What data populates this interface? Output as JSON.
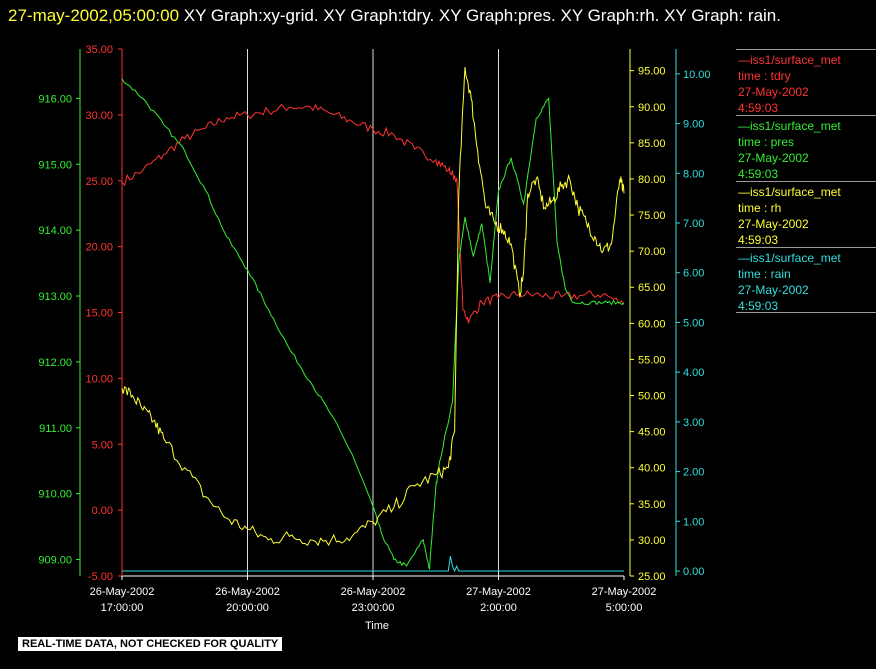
{
  "header": {
    "timestamp": "27-may-2002,05:00:00",
    "title": "XY Graph:xy-grid.  XY Graph:tdry.  XY Graph:pres.  XY Graph:rh.  XY Graph: rain."
  },
  "disclaimer": "REAL-TIME DATA, NOT CHECKED FOR QUALITY",
  "colors": {
    "tdry": "#ff3333",
    "pres": "#33ee33",
    "rh": "#ffff33",
    "rain": "#33dddd",
    "grid": "#dddddd"
  },
  "legend": [
    {
      "name": "iss1/surface_met",
      "var": "time : tdry",
      "date": "27-May-2002",
      "time": "4:59:03",
      "color": "#ff3333"
    },
    {
      "name": "iss1/surface_met",
      "var": "time : pres",
      "date": "27-May-2002",
      "time": "4:59:03",
      "color": "#33ee33"
    },
    {
      "name": "iss1/surface_met",
      "var": "time : rh",
      "date": "27-May-2002",
      "time": "4:59:03",
      "color": "#ffff33"
    },
    {
      "name": "iss1/surface_met",
      "var": "time : rain",
      "date": "27-May-2002",
      "time": "4:59:03",
      "color": "#33dddd"
    }
  ],
  "chart_data": {
    "type": "line",
    "xlabel": "Time",
    "xlim": [
      "2002-05-26 17:00:00",
      "2002-05-27 05:00:00"
    ],
    "xticks": [
      {
        "date": "26-May-2002",
        "time": "17:00:00"
      },
      {
        "date": "26-May-2002",
        "time": "20:00:00"
      },
      {
        "date": "26-May-2002",
        "time": "23:00:00"
      },
      {
        "date": "27-May-2002",
        "time": "2:00:00"
      },
      {
        "date": "27-May-2002",
        "time": "5:00:00"
      }
    ],
    "axes": {
      "pres": {
        "ylim": [
          908.75,
          916.75
        ],
        "ticks": [
          "909.00",
          "910.00",
          "911.00",
          "912.00",
          "913.00",
          "914.00",
          "915.00",
          "916.00"
        ]
      },
      "tdry": {
        "ylim": [
          -5,
          35
        ],
        "ticks": [
          "-5.00",
          "0.00",
          "5.00",
          "10.00",
          "15.00",
          "20.00",
          "25.00",
          "30.00",
          "35.00"
        ]
      },
      "rh": {
        "ylim": [
          25,
          98
        ],
        "ticks": [
          "25.00",
          "30.00",
          "35.00",
          "40.00",
          "45.00",
          "50.00",
          "55.00",
          "60.00",
          "65.00",
          "70.00",
          "75.00",
          "80.00",
          "85.00",
          "90.00",
          "95.00"
        ]
      },
      "rain": {
        "ylim": [
          -0.1,
          10.5
        ],
        "ticks": [
          "0.00",
          "1.00",
          "2.00",
          "3.00",
          "4.00",
          "5.00",
          "6.00",
          "7.00",
          "8.00",
          "9.00",
          "10.00"
        ]
      }
    },
    "series": [
      {
        "key": "tdry",
        "axis": "tdry",
        "x": [
          0,
          0.5,
          1,
          1.5,
          2,
          2.5,
          3,
          3.5,
          4,
          4.5,
          5,
          5.5,
          6,
          6.5,
          7,
          7.5,
          7.8,
          8,
          8.15,
          8.3,
          8.6,
          9,
          9.5,
          10,
          10.5,
          11,
          11.5,
          12
        ],
        "y": [
          24.9,
          25.8,
          27.0,
          28.2,
          29.0,
          29.8,
          30.0,
          30.3,
          30.6,
          30.6,
          30.1,
          29.5,
          28.9,
          28.5,
          27.4,
          26.6,
          25.8,
          25.2,
          15.2,
          14.4,
          15.8,
          16.1,
          16.4,
          16.3,
          16.2,
          16.3,
          16.4,
          15.6
        ]
      },
      {
        "key": "pres",
        "axis": "pres",
        "x": [
          0,
          0.5,
          1,
          1.5,
          2,
          2.5,
          3,
          3.5,
          4,
          4.5,
          5,
          5.5,
          6,
          6.2,
          6.5,
          6.8,
          7.2,
          7.35,
          7.5,
          7.6,
          7.9,
          8.05,
          8.2,
          8.4,
          8.6,
          8.8,
          9.0,
          9.3,
          9.6,
          9.9,
          10.2,
          10.4,
          10.6,
          10.8,
          11.2,
          11.6,
          12
        ],
        "y": [
          916.3,
          916.0,
          915.6,
          915.2,
          914.6,
          913.9,
          913.4,
          912.8,
          912.2,
          911.7,
          911.2,
          910.6,
          909.8,
          909.4,
          909.0,
          908.9,
          909.3,
          908.85,
          910.1,
          910.5,
          911.4,
          913.5,
          914.2,
          913.6,
          914.1,
          913.2,
          914.6,
          915.1,
          914.4,
          915.7,
          916.0,
          913.8,
          913.1,
          912.9,
          912.9,
          912.9,
          912.9
        ]
      },
      {
        "key": "rh",
        "axis": "rh",
        "x": [
          0,
          0.25,
          0.5,
          0.75,
          1,
          1.5,
          2,
          2.5,
          3,
          3.5,
          4,
          4.5,
          5,
          5.5,
          6,
          6.5,
          7,
          7.5,
          7.8,
          7.95,
          8.05,
          8.2,
          8.35,
          8.5,
          8.7,
          8.9,
          9.1,
          9.3,
          9.5,
          9.6,
          9.7,
          9.9,
          10.1,
          10.3,
          10.5,
          10.7,
          10.9,
          11.1,
          11.3,
          11.5,
          11.7,
          11.9,
          12
        ],
        "y": [
          51.0,
          50.0,
          48.0,
          46.5,
          44.0,
          40.0,
          36.0,
          33.0,
          31.5,
          30.0,
          30.5,
          30.0,
          30.0,
          30.5,
          32.5,
          34.5,
          37.5,
          39.0,
          40.0,
          45.0,
          78.0,
          95.5,
          91.0,
          84.0,
          76.0,
          74.0,
          73.0,
          71.0,
          64.0,
          67.0,
          78.0,
          80.0,
          76.0,
          77.0,
          79.0,
          80.0,
          76.0,
          74.0,
          72.0,
          70.0,
          71.0,
          80.0,
          78.0
        ]
      },
      {
        "key": "rain",
        "axis": "rain",
        "x": [
          0,
          7.6,
          7.7,
          7.75,
          7.8,
          7.85,
          7.9,
          7.95,
          8.0,
          8.05,
          8.1,
          12
        ],
        "y": [
          0,
          0,
          0,
          0,
          0,
          0.3,
          0.1,
          0,
          0.1,
          0,
          0,
          0
        ]
      }
    ]
  }
}
